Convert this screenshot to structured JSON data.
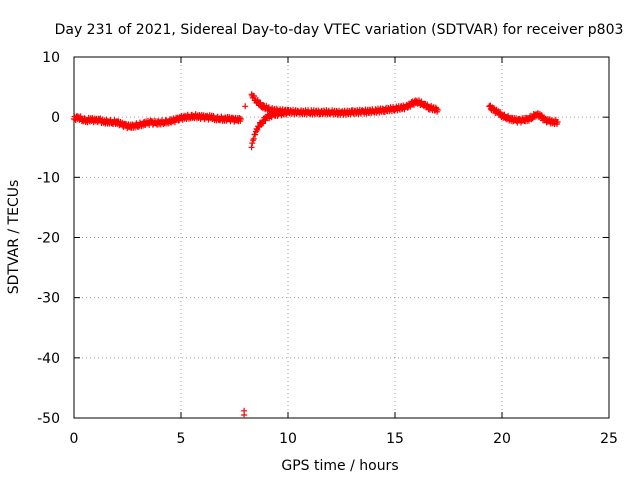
{
  "chart_data": {
    "type": "scatter",
    "title": "Day 231 of 2021, Sidereal Day-to-day VTEC variation (SDTVAR) for receiver p803",
    "xlabel": "GPS time / hours",
    "ylabel": "SDTVAR / TECUs",
    "xlim": [
      0,
      25
    ],
    "ylim": [
      -50,
      10
    ],
    "xticks": [
      0,
      5,
      10,
      15,
      20,
      25
    ],
    "yticks": [
      -50,
      -40,
      -30,
      -20,
      -10,
      0,
      10
    ],
    "xtick_labels": [
      "0",
      "5",
      "10",
      "15",
      "20",
      "25"
    ],
    "ytick_labels": [
      "-50",
      "-40",
      "-30",
      "-20",
      "-10",
      "0",
      "10"
    ],
    "grid": true,
    "marker": "+",
    "color": "#ff0000",
    "series": [
      {
        "name": "SDTVAR",
        "x": [
          0.0,
          0.2,
          0.4,
          0.6,
          0.8,
          1.0,
          1.2,
          1.4,
          1.6,
          1.8,
          2.0,
          2.2,
          2.4,
          2.6,
          2.8,
          3.0,
          3.2,
          3.4,
          3.6,
          3.8,
          4.0,
          4.2,
          4.4,
          4.6,
          4.8,
          5.0,
          5.2,
          5.4,
          5.6,
          5.8,
          6.0,
          6.2,
          6.4,
          6.6,
          6.8,
          7.0,
          7.2,
          7.4,
          7.6,
          7.8,
          7.95,
          7.95,
          8.0,
          8.3,
          8.4,
          8.5,
          8.6,
          8.8,
          9.0,
          9.3,
          9.6,
          10.0,
          8.3,
          8.5,
          8.8,
          9.2,
          9.6,
          10.0,
          10.5,
          11.0,
          11.5,
          12.0,
          12.5,
          13.0,
          13.5,
          14.0,
          14.5,
          15.0,
          15.5,
          15.8,
          16.0,
          16.3,
          16.6,
          17.0,
          19.4,
          19.6,
          19.8,
          20.0,
          20.2,
          20.4,
          20.6,
          20.8,
          21.0,
          21.2,
          21.4,
          21.6,
          21.8,
          22.0,
          22.2,
          22.4,
          22.6
        ],
        "y": [
          -0.3,
          0.0,
          -0.4,
          -0.5,
          -0.4,
          -0.6,
          -0.5,
          -0.8,
          -0.7,
          -0.8,
          -0.8,
          -1.2,
          -1.4,
          -1.6,
          -1.4,
          -1.3,
          -1.1,
          -1.0,
          -0.9,
          -1.0,
          -0.9,
          -0.8,
          -0.7,
          -0.6,
          -0.4,
          -0.2,
          0.0,
          0.1,
          0.2,
          0.1,
          0.0,
          -0.1,
          0.0,
          -0.2,
          -0.2,
          -0.3,
          -0.3,
          -0.4,
          -0.5,
          -0.3,
          -48.8,
          -49.5,
          1.8,
          -5.0,
          -3.6,
          -2.4,
          -1.5,
          -0.8,
          0.0,
          0.4,
          0.6,
          0.8,
          3.8,
          2.8,
          1.8,
          1.2,
          1.0,
          0.9,
          0.8,
          0.8,
          0.8,
          0.8,
          0.7,
          0.8,
          0.9,
          1.0,
          1.2,
          1.4,
          1.7,
          2.2,
          2.6,
          2.2,
          1.6,
          1.2,
          1.8,
          1.2,
          0.8,
          0.3,
          0.0,
          -0.3,
          -0.5,
          -0.6,
          -0.5,
          -0.3,
          0.0,
          0.5,
          0.2,
          -0.5,
          -0.7,
          -0.8,
          -0.8
        ]
      }
    ]
  }
}
